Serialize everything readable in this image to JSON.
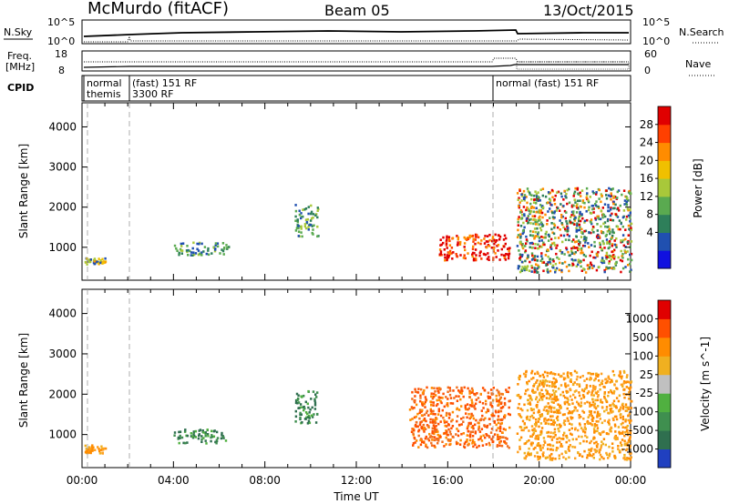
{
  "header": {
    "station": "McMurdo (fitACF)",
    "beam": "Beam 05",
    "date": "13/Oct/2015"
  },
  "top_strip": {
    "left_label": "N.Sky",
    "left_ticks": [
      "10^5",
      "10^0"
    ],
    "right_label": "N.Search",
    "right_ticks": [
      "10^5",
      "10^0"
    ]
  },
  "freq_strip": {
    "left_label_1": "Freq.",
    "left_label_2": "[MHz]",
    "left_ticks": [
      "18",
      "8"
    ],
    "right_label": "Nave",
    "right_ticks": [
      "60",
      "0"
    ]
  },
  "cpid": {
    "label": "CPID",
    "entries": [
      {
        "text": "normal",
        "hour": 0.1
      },
      {
        "text": "themis",
        "hour": 0.1
      },
      {
        "text": "(fast) 151 RF",
        "hour": 2.1
      },
      {
        "text": "3300 RF",
        "hour": 2.1
      },
      {
        "text": "normal (fast) 151 RF",
        "hour": 18.1
      }
    ]
  },
  "chart_data": [
    {
      "type": "heatmap",
      "panel": "power",
      "xlabel": "",
      "ylabel": "Slant Range [km]",
      "xlim": [
        0,
        24
      ],
      "ylim": [
        180,
        4600
      ],
      "yticks": [
        "1000",
        "2000",
        "3000",
        "4000"
      ],
      "colorbar": {
        "label": "Power [dB]",
        "ticks": [
          "28",
          "24",
          "20",
          "16",
          "12",
          "8",
          "4"
        ],
        "colors": [
          "#1010e0",
          "#2050b0",
          "#2e7f5a",
          "#5aaa50",
          "#a8c83a",
          "#f0c000",
          "#ff8c00",
          "#ff4000",
          "#e00000"
        ]
      },
      "regions": [
        {
          "x": [
            0.1,
            1.0
          ],
          "y": [
            600,
            760
          ],
          "level": "yellow"
        },
        {
          "x": [
            4.0,
            6.4
          ],
          "y": [
            820,
            1150
          ],
          "level": "green"
        },
        {
          "x": [
            9.3,
            10.3
          ],
          "y": [
            1300,
            2100
          ],
          "level": "green"
        },
        {
          "x": [
            15.6,
            18.7
          ],
          "y": [
            700,
            1350
          ],
          "level": "red"
        },
        {
          "x": [
            19.0,
            24.0
          ],
          "y": [
            400,
            2500
          ],
          "level": "mixed"
        }
      ]
    },
    {
      "type": "heatmap",
      "panel": "velocity",
      "xlabel": "Time UT",
      "ylabel": "Slant Range [km]",
      "xlim": [
        0,
        24
      ],
      "ylim": [
        180,
        4600
      ],
      "xticks": [
        "00:00",
        "04:00",
        "08:00",
        "12:00",
        "16:00",
        "20:00",
        "00:00"
      ],
      "yticks": [
        "1000",
        "2000",
        "3000",
        "4000"
      ],
      "colorbar": {
        "label": "Velocity [m s^-1]",
        "ticks": [
          "1000",
          "500",
          "100",
          "25",
          "-25",
          "-100",
          "-500",
          "-1000"
        ],
        "colors": [
          "#2040c0",
          "#2f6f4f",
          "#3f8f4f",
          "#50b040",
          "#c0c0c0",
          "#f0b020",
          "#ff8c00",
          "#ff5000",
          "#e00000"
        ]
      },
      "regions": [
        {
          "x": [
            0.1,
            1.0
          ],
          "y": [
            560,
            760
          ],
          "level": "orange"
        },
        {
          "x": [
            4.0,
            6.4
          ],
          "y": [
            800,
            1150
          ],
          "level": "green"
        },
        {
          "x": [
            9.3,
            10.3
          ],
          "y": [
            1300,
            2100
          ],
          "level": "green"
        },
        {
          "x": [
            14.3,
            18.7
          ],
          "y": [
            700,
            2200
          ],
          "level": "orange-red"
        },
        {
          "x": [
            19.0,
            24.0
          ],
          "y": [
            400,
            2600
          ],
          "level": "orange"
        }
      ]
    }
  ]
}
